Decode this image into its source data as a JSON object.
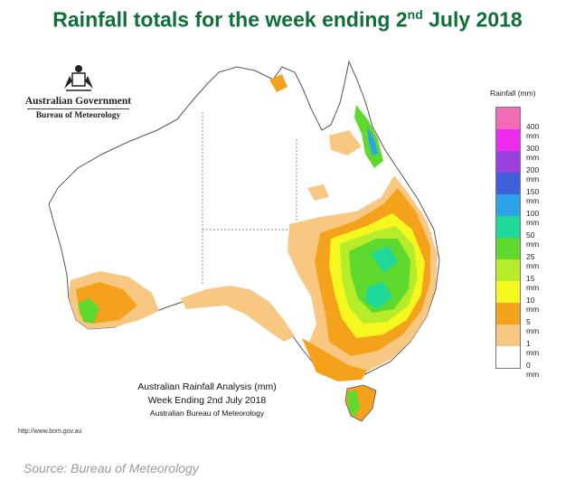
{
  "header": {
    "title_main": "Rainfall totals for the week ending 2",
    "title_sup": "nd",
    "title_end": " July 2018"
  },
  "agency": {
    "name": "Australian Government",
    "bureau": "Bureau of Meteorology"
  },
  "legend": {
    "title": "Rainfall (mm)",
    "bins": [
      {
        "label": "400 mm",
        "color": "#f26bb5"
      },
      {
        "label": "300 mm",
        "color": "#ee2bee"
      },
      {
        "label": "200 mm",
        "color": "#9a3fe0"
      },
      {
        "label": "150 mm",
        "color": "#3e5fd9"
      },
      {
        "label": "100 mm",
        "color": "#2ea4e8"
      },
      {
        "label": "50 mm",
        "color": "#1ed99a"
      },
      {
        "label": "25 mm",
        "color": "#5fd92e"
      },
      {
        "label": "15 mm",
        "color": "#b7ec2a"
      },
      {
        "label": "10 mm",
        "color": "#f7f720"
      },
      {
        "label": "5 mm",
        "color": "#f4a21c"
      },
      {
        "label": "1 mm",
        "color": "#f8c882"
      },
      {
        "label": "0 mm",
        "color": "#ffffff"
      }
    ]
  },
  "analysis": {
    "line1": "Australian Rainfall Analysis (mm)",
    "line2": "Week Ending 2nd July 2018",
    "line3": "Australian Bureau of Meteorology"
  },
  "url": "http://www.bom.gov.au",
  "source": "Source: Bureau of Meteorology"
}
